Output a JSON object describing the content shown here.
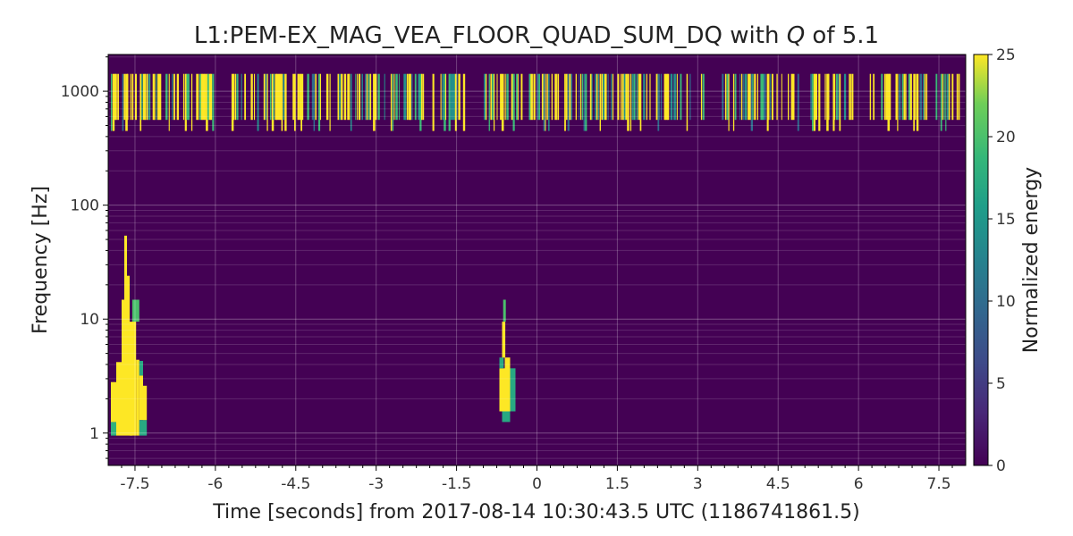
{
  "chart_data": {
    "type": "heatmap",
    "title_prefix": "L1:PEM-EX_MAG_VEA_FLOOR_QUAD_SUM_DQ with ",
    "title_q": "Q",
    "title_suffix": " of 5.1",
    "xlabel": "Time [seconds] from 2017-08-14 10:30:43.5 UTC (1186741861.5)",
    "ylabel": "Frequency [Hz]",
    "colorbar_label": "Normalized energy",
    "xlim": [
      -8,
      8
    ],
    "ylim": [
      0.52,
      2100
    ],
    "yscale": "log",
    "grid": true,
    "colormap": "viridis",
    "background_color": "#440154",
    "xticks": [
      -7.5,
      -6,
      -4.5,
      -3,
      -1.5,
      0,
      1.5,
      3,
      4.5,
      6,
      7.5
    ],
    "xtick_labels": [
      "-7.5",
      "-6",
      "-4.5",
      "-3",
      "-1.5",
      "0",
      "1.5",
      "3",
      "4.5",
      "6",
      "7.5"
    ],
    "yticks": [
      1,
      10,
      100,
      1000
    ],
    "ytick_labels": [
      "1",
      "10",
      "100",
      "1000"
    ],
    "colorbar_ticks": [
      0,
      5,
      10,
      15,
      20,
      25
    ],
    "colorbar_tick_labels": [
      "0",
      "5",
      "10",
      "15",
      "20",
      "25"
    ],
    "colorbar_range": [
      0,
      25
    ],
    "high_freq_band": {
      "description_free": true,
      "freq_range": [
        560,
        1420
      ],
      "time_range": [
        -7.95,
        7.95
      ],
      "gaps": [
        [
          -6.0,
          -5.75
        ],
        [
          -1.35,
          -1.0
        ],
        [
          3.1,
          3.45
        ],
        [
          5.9,
          6.15
        ]
      ]
    },
    "blobs": [
      {
        "t_center": -7.6,
        "columns": [
          {
            "t": [
              -7.95,
              -7.85
            ],
            "f": [
              0.95,
              1.25
            ],
            "v": 18
          },
          {
            "t": [
              -7.95,
              -7.85
            ],
            "f": [
              1.25,
              2.8
            ],
            "v": 25
          },
          {
            "t": [
              -7.85,
              -7.75
            ],
            "f": [
              0.95,
              4.2
            ],
            "v": 25
          },
          {
            "t": [
              -7.75,
              -7.7
            ],
            "f": [
              0.95,
              14.8
            ],
            "v": 25
          },
          {
            "t": [
              -7.7,
              -7.65
            ],
            "f": [
              0.95,
              54
            ],
            "v": 25
          },
          {
            "t": [
              -7.65,
              -7.6
            ],
            "f": [
              0.95,
              24
            ],
            "v": 25
          },
          {
            "t": [
              -7.6,
              -7.55
            ],
            "f": [
              0.95,
              9.5
            ],
            "v": 25
          },
          {
            "t": [
              -7.55,
              -7.48
            ],
            "f": [
              0.95,
              14.8
            ],
            "v": 25
          },
          {
            "t": [
              -7.48,
              -7.42
            ],
            "f": [
              0.95,
              4.4
            ],
            "v": 25
          },
          {
            "t": [
              -7.42,
              -7.35
            ],
            "f": [
              1.3,
              3.2
            ],
            "v": 25
          },
          {
            "t": [
              -7.55,
              -7.42
            ],
            "f": [
              9.5,
              14.8
            ],
            "v": 20
          },
          {
            "t": [
              -7.42,
              -7.35
            ],
            "f": [
              3.2,
              4.3
            ],
            "v": 17
          },
          {
            "t": [
              -7.42,
              -7.28
            ],
            "f": [
              0.95,
              1.3
            ],
            "v": 17
          },
          {
            "t": [
              -7.35,
              -7.28
            ],
            "f": [
              1.3,
              2.6
            ],
            "v": 25
          }
        ]
      },
      {
        "t_center": -0.6,
        "columns": [
          {
            "t": [
              -0.7,
              -0.6
            ],
            "f": [
              1.55,
              3.7
            ],
            "v": 25
          },
          {
            "t": [
              -0.7,
              -0.62
            ],
            "f": [
              3.7,
              4.6
            ],
            "v": 17
          },
          {
            "t": [
              -0.65,
              -0.59
            ],
            "f": [
              4.6,
              9.5
            ],
            "v": 25
          },
          {
            "t": [
              -0.63,
              -0.58
            ],
            "f": [
              9.5,
              14.8
            ],
            "v": 20
          },
          {
            "t": [
              -0.6,
              -0.5
            ],
            "f": [
              1.55,
              4.6
            ],
            "v": 25
          },
          {
            "t": [
              -0.5,
              -0.4
            ],
            "f": [
              1.55,
              3.7
            ],
            "v": 17
          },
          {
            "t": [
              -0.65,
              -0.5
            ],
            "f": [
              1.25,
              1.55
            ],
            "v": 17
          }
        ]
      }
    ]
  }
}
